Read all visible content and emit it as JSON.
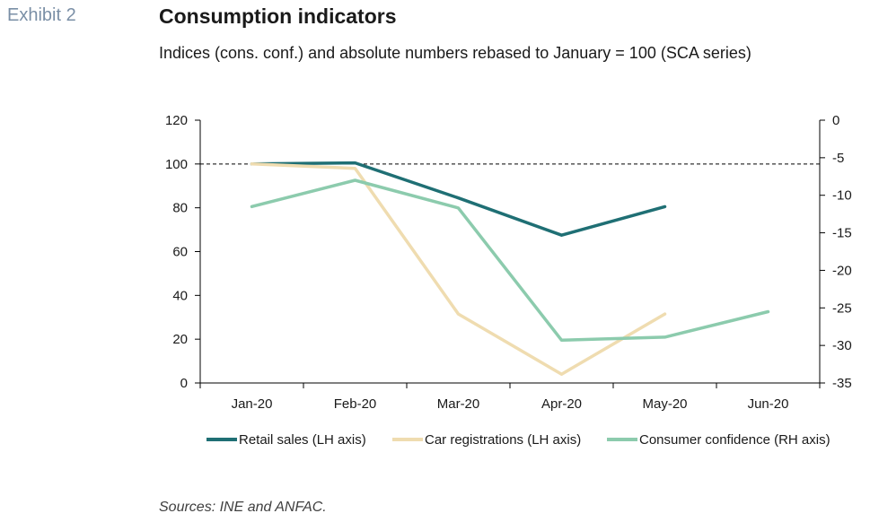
{
  "header": {
    "exhibit": "Exhibit 2",
    "title": "Consumption indicators",
    "subtitle": "Indices (cons. conf.) and absolute numbers rebased to January = 100 (SCA series)"
  },
  "footer": {
    "source": "Sources: INE and ANFAC."
  },
  "chart_data": {
    "type": "line",
    "categories": [
      "Jan-20",
      "Feb-20",
      "Mar-20",
      "Apr-20",
      "May-20",
      "Jun-20"
    ],
    "y_left": {
      "ylim": [
        0,
        120
      ],
      "ticks": [
        "0",
        "20",
        "40",
        "60",
        "80",
        "100",
        "120"
      ]
    },
    "y_right": {
      "ylim": [
        -35,
        0
      ],
      "ticks": [
        "-35",
        "-30",
        "-25",
        "-20",
        "-15",
        "-10",
        "-5",
        "0"
      ]
    },
    "reference_line": {
      "axis": "left",
      "value": 100,
      "style": "dashed"
    },
    "series": [
      {
        "name": "Retail sales (LH axis)",
        "axis": "left",
        "color": "#1f6f74",
        "values": [
          100,
          100.5,
          84.5,
          67.5,
          80.5,
          null
        ]
      },
      {
        "name": "Car registrations (LH axis)",
        "axis": "left",
        "color": "#efdcb0",
        "values": [
          100,
          98,
          31.5,
          4,
          31.5,
          null
        ]
      },
      {
        "name": "Consumer confidence (RH axis)",
        "axis": "right",
        "color": "#8ccbad",
        "values": [
          -11.5,
          -8,
          -11.7,
          -29.3,
          -28.9,
          -25.5
        ]
      }
    ],
    "legend_position": "bottom"
  }
}
